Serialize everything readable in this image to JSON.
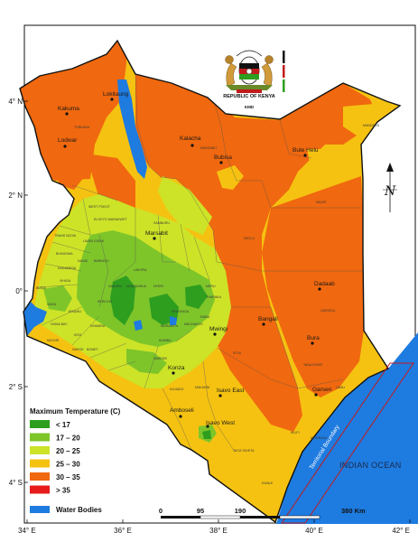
{
  "coat_of_arms": {
    "country_label": "REPUBLIC OF KENYA",
    "agency_label": "KMD",
    "motto": "HARAMBEE"
  },
  "graticule": {
    "lat_labels": [
      "4° N",
      "2° N",
      "0°",
      "2° S",
      "4° S"
    ],
    "lon_labels": [
      "34° E",
      "36° E",
      "38° E",
      "40° E",
      "42° E"
    ]
  },
  "legend": {
    "title": "Maximum Temperature (C)",
    "items": [
      {
        "label": "< 17",
        "color": "#2e9e1f"
      },
      {
        "label": "17 – 20",
        "color": "#7ec52a"
      },
      {
        "label": "20 – 25",
        "color": "#cde327"
      },
      {
        "label": "25 – 30",
        "color": "#f5c211"
      },
      {
        "label": "30 – 35",
        "color": "#f0680f"
      },
      {
        "label": "> 35",
        "color": "#e81b1b"
      }
    ],
    "water": {
      "label": "Water Bodies",
      "color": "#1e7be0"
    }
  },
  "scale_bar": {
    "ticks": [
      "0",
      "95",
      "190",
      "380 Km"
    ]
  },
  "north_arrow": {
    "label": "N"
  },
  "ocean": {
    "label": "INDIAN OCEAN"
  },
  "territorial_boundary": {
    "label": "Territorial Boundary"
  },
  "cities": [
    {
      "name": "Lokitaung"
    },
    {
      "name": "Kakuma"
    },
    {
      "name": "Lodwar"
    },
    {
      "name": "Kalacha"
    },
    {
      "name": "Bubisa"
    },
    {
      "name": "Bute Helu"
    },
    {
      "name": "Marsabit"
    },
    {
      "name": "Dadaab"
    },
    {
      "name": "Bangali"
    },
    {
      "name": "Mwingi"
    },
    {
      "name": "Bura"
    },
    {
      "name": "Konza"
    },
    {
      "name": "Isavo East"
    },
    {
      "name": "Garsen"
    },
    {
      "name": "Amboseli"
    },
    {
      "name": "Isavo West"
    }
  ],
  "county_labels": [
    "TURKANA",
    "MARSABIT",
    "MANDERA",
    "WAJIR",
    "ISIOLO",
    "SAMBURU",
    "WEST POKOT",
    "TRANS NZOIA",
    "UASIN GISHU",
    "KAKAMEGA",
    "BUNGOMA",
    "BUSIA",
    "SIAYA",
    "KISUMU",
    "HOMA BAY",
    "MIGORI",
    "KISII",
    "NYAMIRA",
    "KERICHO",
    "BOMET",
    "NAKURU",
    "NAROK",
    "BARINGO",
    "LAIKIPIA",
    "NYANDARUA",
    "NYERI",
    "MERU",
    "THARAKA",
    "EMBU",
    "KIRINYAGA",
    "MURANG'A",
    "KIAMBU",
    "NAIROBI",
    "KAJIADO",
    "MACHAKOS",
    "MAKUENI",
    "KITUI",
    "GARISSA",
    "TANA RIVER",
    "LAMU",
    "KILIFI",
    "MOMBASA",
    "KWALE",
    "TAITA TAVETA",
    "NANDI",
    "VIHIGA",
    "ELGEYO MARAKWET"
  ]
}
